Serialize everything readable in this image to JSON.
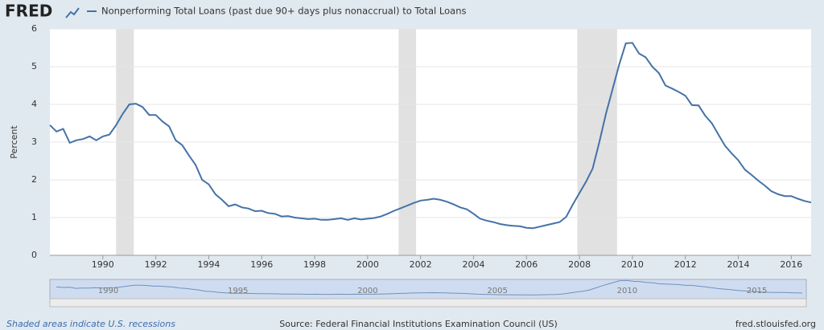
{
  "chart_data": {
    "type": "line",
    "logo": "FRED",
    "title": "Nonperforming Total Loans (past due 90+ days plus nonaccrual) to Total Loans",
    "y_label": "Percent",
    "x": [
      1988,
      1988.25,
      1988.5,
      1988.75,
      1989,
      1989.25,
      1989.5,
      1989.75,
      1990,
      1990.25,
      1990.5,
      1990.75,
      1991,
      1991.25,
      1991.5,
      1991.75,
      1992,
      1992.25,
      1992.5,
      1992.75,
      1993,
      1993.25,
      1993.5,
      1993.75,
      1994,
      1994.25,
      1994.5,
      1994.75,
      1995,
      1995.25,
      1995.5,
      1995.75,
      1996,
      1996.25,
      1996.5,
      1996.75,
      1997,
      1997.25,
      1997.5,
      1997.75,
      1998,
      1998.25,
      1998.5,
      1998.75,
      1999,
      1999.25,
      1999.5,
      1999.75,
      2000,
      2000.25,
      2000.5,
      2000.75,
      2001,
      2001.25,
      2001.5,
      2001.75,
      2002,
      2002.25,
      2002.5,
      2002.75,
      2003,
      2003.25,
      2003.5,
      2003.75,
      2004,
      2004.25,
      2004.5,
      2004.75,
      2005,
      2005.25,
      2005.5,
      2005.75,
      2006,
      2006.25,
      2006.5,
      2006.75,
      2007,
      2007.25,
      2007.5,
      2007.75,
      2008,
      2008.25,
      2008.5,
      2008.75,
      2009,
      2009.25,
      2009.5,
      2009.75,
      2010,
      2010.25,
      2010.5,
      2010.75,
      2011,
      2011.25,
      2011.5,
      2011.75,
      2012,
      2012.25,
      2012.5,
      2012.75,
      2013,
      2013.25,
      2013.5,
      2013.75,
      2014,
      2014.25,
      2014.5,
      2014.75,
      2015,
      2015.25,
      2015.5,
      2015.75,
      2016,
      2016.25,
      2016.5,
      2016.75
    ],
    "series": [
      {
        "name": "Nonperforming Total Loans (past due 90+ days plus nonaccrual) to Total Loans",
        "color": "#4572a7",
        "values": [
          3.45,
          3.28,
          3.35,
          2.98,
          3.05,
          3.08,
          3.15,
          3.05,
          3.15,
          3.2,
          3.45,
          3.75,
          4.0,
          4.02,
          3.93,
          3.72,
          3.72,
          3.55,
          3.42,
          3.05,
          2.92,
          2.65,
          2.4,
          2.0,
          1.88,
          1.62,
          1.47,
          1.3,
          1.35,
          1.27,
          1.24,
          1.17,
          1.18,
          1.12,
          1.1,
          1.03,
          1.04,
          1.0,
          0.98,
          0.96,
          0.97,
          0.94,
          0.94,
          0.96,
          0.98,
          0.94,
          0.98,
          0.95,
          0.97,
          0.99,
          1.03,
          1.1,
          1.18,
          1.25,
          1.32,
          1.39,
          1.45,
          1.47,
          1.5,
          1.47,
          1.42,
          1.35,
          1.27,
          1.22,
          1.1,
          0.97,
          0.92,
          0.88,
          0.83,
          0.8,
          0.78,
          0.77,
          0.73,
          0.72,
          0.76,
          0.8,
          0.84,
          0.88,
          1.02,
          1.35,
          1.65,
          1.95,
          2.3,
          3.0,
          3.75,
          4.4,
          5.05,
          5.62,
          5.63,
          5.35,
          5.25,
          5.0,
          4.83,
          4.5,
          4.42,
          4.33,
          4.23,
          3.98,
          3.97,
          3.7,
          3.5,
          3.2,
          2.9,
          2.7,
          2.52,
          2.27,
          2.13,
          1.98,
          1.85,
          1.7,
          1.62,
          1.57,
          1.57,
          1.5,
          1.44,
          1.4
        ]
      }
    ],
    "recessions": [
      [
        1990.5,
        1991.17
      ],
      [
        2001.17,
        2001.83
      ],
      [
        2007.92,
        2009.42
      ]
    ],
    "recession_color": "#e1e1e1",
    "xlim": [
      1988,
      2016.75
    ],
    "xticks": [
      1990,
      1992,
      1994,
      1996,
      1998,
      2000,
      2002,
      2004,
      2006,
      2008,
      2010,
      2012,
      2014,
      2016
    ],
    "ylim": [
      0,
      6
    ],
    "yticks": [
      0,
      1,
      2,
      3,
      4,
      5,
      6
    ],
    "grid": true,
    "navigator_ticks": [
      1990,
      1995,
      2000,
      2005,
      2010,
      2015
    ],
    "recession_note": "Shaded areas indicate U.S. recessions",
    "source": "Source: Federal Financial Institutions Examination Council (US)",
    "site": "fred.stlouisfed.org"
  }
}
